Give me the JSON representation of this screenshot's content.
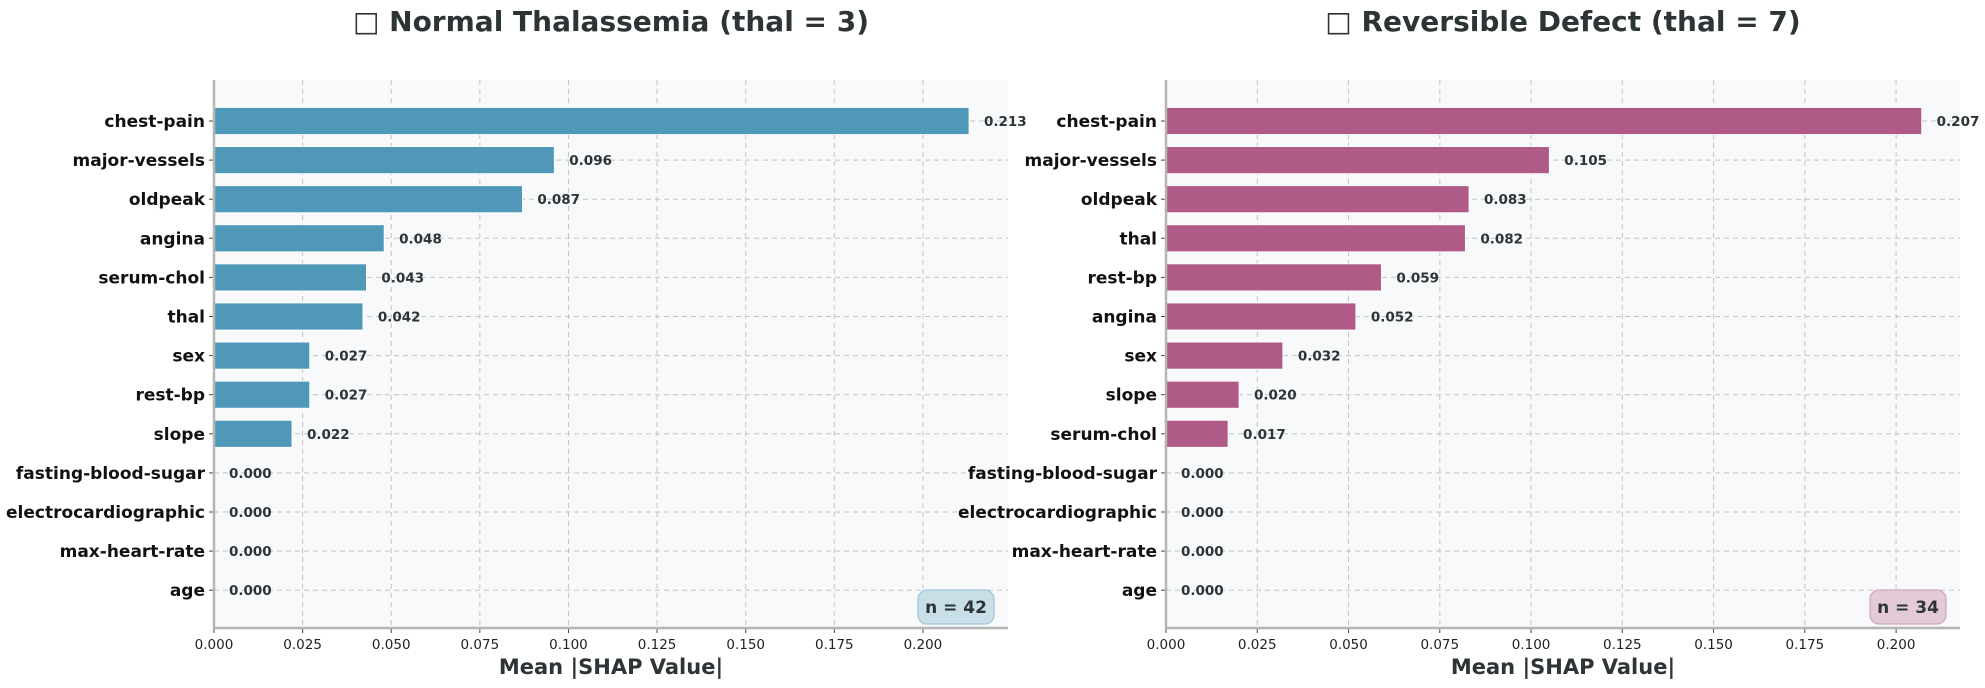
{
  "chart_data": [
    {
      "type": "bar",
      "orientation": "horizontal",
      "title": "□ Normal Thalassemia (thal = 3)",
      "xlabel": "Mean |SHAP Value|",
      "ylabel": "",
      "categories": [
        "chest-pain",
        "major-vessels",
        "oldpeak",
        "angina",
        "serum-chol",
        "thal",
        "sex",
        "rest-bp",
        "slope",
        "fasting-blood-sugar",
        "electrocardiographic",
        "max-heart-rate",
        "age"
      ],
      "values": [
        0.213,
        0.096,
        0.087,
        0.048,
        0.043,
        0.042,
        0.027,
        0.027,
        0.022,
        0.0,
        0.0,
        0.0,
        0.0
      ],
      "value_labels": [
        "0.213",
        "0.096",
        "0.087",
        "0.048",
        "0.043",
        "0.042",
        "0.027",
        "0.027",
        "0.022",
        "0.000",
        "0.000",
        "0.000",
        "0.000"
      ],
      "xlim": [
        0,
        0.224
      ],
      "xticks": [
        "0.000",
        "0.025",
        "0.050",
        "0.075",
        "0.100",
        "0.125",
        "0.150",
        "0.175",
        "0.200"
      ],
      "grid": true,
      "annotation": "n = 42",
      "colors": {
        "bar": "#4f98b8",
        "badge_fill": "#c9dfe8",
        "badge_stroke": "#9cc4d6"
      }
    },
    {
      "type": "bar",
      "orientation": "horizontal",
      "title": "□ Reversible Defect (thal = 7)",
      "xlabel": "Mean |SHAP Value|",
      "ylabel": "",
      "categories": [
        "chest-pain",
        "major-vessels",
        "oldpeak",
        "thal",
        "rest-bp",
        "angina",
        "sex",
        "slope",
        "serum-chol",
        "fasting-blood-sugar",
        "electrocardiographic",
        "max-heart-rate",
        "age"
      ],
      "values": [
        0.207,
        0.105,
        0.083,
        0.082,
        0.059,
        0.052,
        0.032,
        0.02,
        0.017,
        0.0,
        0.0,
        0.0,
        0.0
      ],
      "value_labels": [
        "0.207",
        "0.105",
        "0.083",
        "0.082",
        "0.059",
        "0.052",
        "0.032",
        "0.020",
        "0.017",
        "0.000",
        "0.000",
        "0.000",
        "0.000"
      ],
      "xlim": [
        0,
        0.2175
      ],
      "xticks": [
        "0.000",
        "0.025",
        "0.050",
        "0.075",
        "0.100",
        "0.125",
        "0.150",
        "0.175",
        "0.200"
      ],
      "grid": true,
      "annotation": "n = 34",
      "colors": {
        "bar": "#b05a87",
        "badge_fill": "#e4cad8",
        "badge_stroke": "#d2a6bf"
      }
    }
  ]
}
